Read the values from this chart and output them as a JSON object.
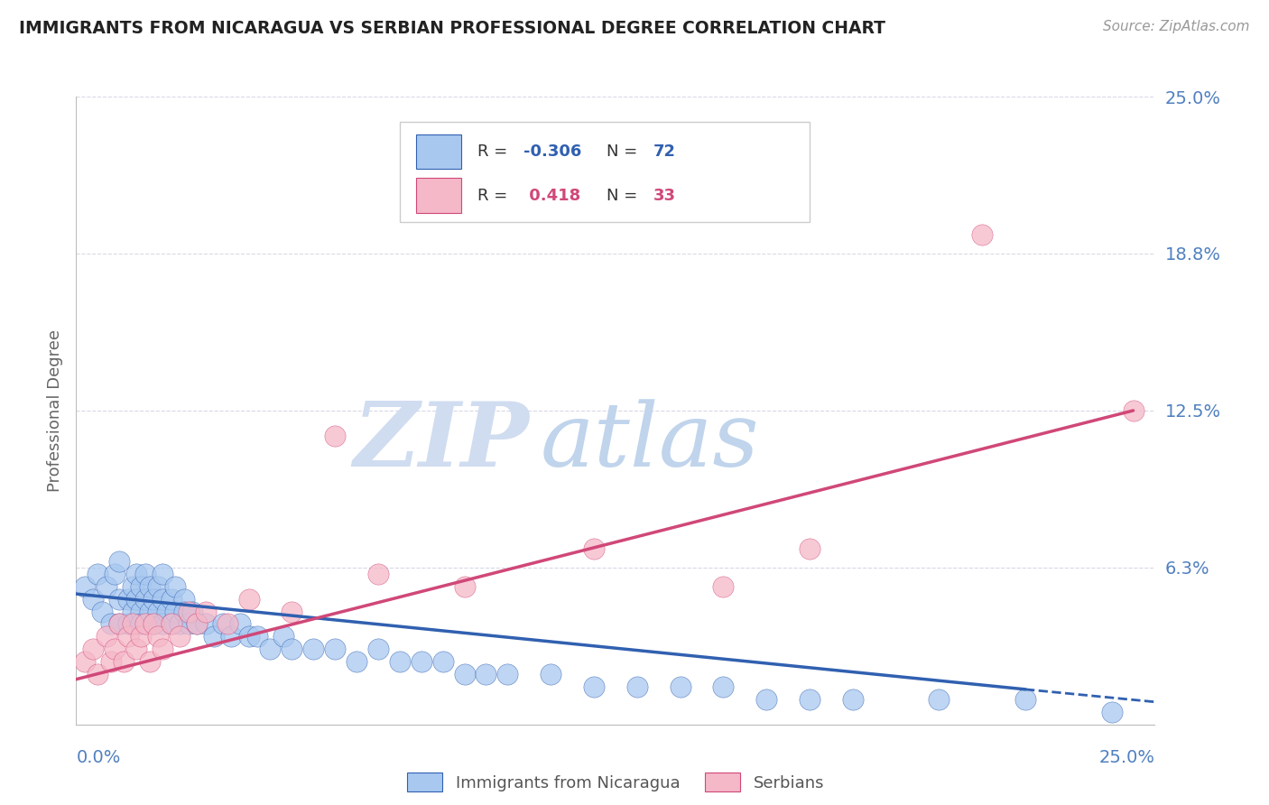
{
  "title": "IMMIGRANTS FROM NICARAGUA VS SERBIAN PROFESSIONAL DEGREE CORRELATION CHART",
  "source_text": "Source: ZipAtlas.com",
  "ylabel": "Professional Degree",
  "yticks": [
    0.0,
    0.0625,
    0.125,
    0.1875,
    0.25
  ],
  "ytick_labels": [
    "",
    "6.3%",
    "12.5%",
    "18.8%",
    "25.0%"
  ],
  "xlim": [
    0.0,
    0.25
  ],
  "ylim": [
    0.0,
    0.25
  ],
  "color_nicaragua": "#A8C8F0",
  "color_serbian": "#F5B8C8",
  "color_trend_nicaragua": "#3060B0",
  "color_trend_serbian": "#D04878",
  "color_axis_label": "#5080C0",
  "watermark_zip_color": "#D0DCF0",
  "watermark_atlas_color": "#C0D4EC",
  "background_color": "#FFFFFF",
  "grid_color": "#D8D8E8",
  "nicaragua_x": [
    0.002,
    0.004,
    0.005,
    0.006,
    0.007,
    0.008,
    0.009,
    0.01,
    0.01,
    0.01,
    0.012,
    0.012,
    0.013,
    0.013,
    0.014,
    0.014,
    0.015,
    0.015,
    0.015,
    0.016,
    0.016,
    0.017,
    0.017,
    0.018,
    0.018,
    0.019,
    0.019,
    0.02,
    0.02,
    0.02,
    0.021,
    0.022,
    0.022,
    0.023,
    0.023,
    0.024,
    0.025,
    0.025,
    0.026,
    0.027,
    0.028,
    0.03,
    0.032,
    0.034,
    0.036,
    0.038,
    0.04,
    0.042,
    0.045,
    0.048,
    0.05,
    0.055,
    0.06,
    0.065,
    0.07,
    0.075,
    0.08,
    0.085,
    0.09,
    0.095,
    0.1,
    0.11,
    0.12,
    0.13,
    0.14,
    0.15,
    0.16,
    0.17,
    0.18,
    0.2,
    0.22,
    0.24
  ],
  "nicaragua_y": [
    0.055,
    0.05,
    0.06,
    0.045,
    0.055,
    0.04,
    0.06,
    0.05,
    0.04,
    0.065,
    0.05,
    0.04,
    0.055,
    0.045,
    0.05,
    0.06,
    0.045,
    0.055,
    0.04,
    0.05,
    0.06,
    0.045,
    0.055,
    0.04,
    0.05,
    0.045,
    0.055,
    0.05,
    0.04,
    0.06,
    0.045,
    0.05,
    0.04,
    0.045,
    0.055,
    0.04,
    0.05,
    0.045,
    0.04,
    0.045,
    0.04,
    0.04,
    0.035,
    0.04,
    0.035,
    0.04,
    0.035,
    0.035,
    0.03,
    0.035,
    0.03,
    0.03,
    0.03,
    0.025,
    0.03,
    0.025,
    0.025,
    0.025,
    0.02,
    0.02,
    0.02,
    0.02,
    0.015,
    0.015,
    0.015,
    0.015,
    0.01,
    0.01,
    0.01,
    0.01,
    0.01,
    0.005
  ],
  "serbian_x": [
    0.002,
    0.004,
    0.005,
    0.007,
    0.008,
    0.009,
    0.01,
    0.011,
    0.012,
    0.013,
    0.014,
    0.015,
    0.016,
    0.017,
    0.018,
    0.019,
    0.02,
    0.022,
    0.024,
    0.026,
    0.028,
    0.03,
    0.035,
    0.04,
    0.05,
    0.06,
    0.07,
    0.09,
    0.12,
    0.15,
    0.17,
    0.21,
    0.245
  ],
  "serbian_y": [
    0.025,
    0.03,
    0.02,
    0.035,
    0.025,
    0.03,
    0.04,
    0.025,
    0.035,
    0.04,
    0.03,
    0.035,
    0.04,
    0.025,
    0.04,
    0.035,
    0.03,
    0.04,
    0.035,
    0.045,
    0.04,
    0.045,
    0.04,
    0.05,
    0.045,
    0.115,
    0.06,
    0.055,
    0.07,
    0.055,
    0.07,
    0.195,
    0.125
  ],
  "trend_nic_x0": 0.0,
  "trend_nic_y0": 0.052,
  "trend_nic_x1": 0.22,
  "trend_nic_y1": 0.014,
  "trend_nic_dash_x1": 0.25,
  "trend_nic_dash_y1": 0.009,
  "trend_serb_x0": 0.0,
  "trend_serb_y0": 0.018,
  "trend_serb_x1": 0.245,
  "trend_serb_y1": 0.125
}
